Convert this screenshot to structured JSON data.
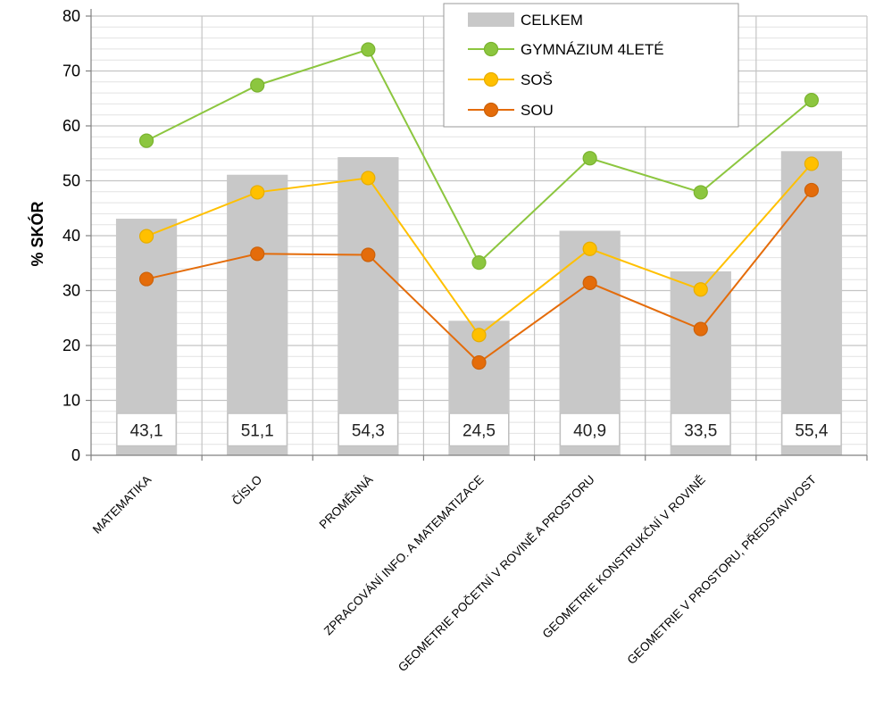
{
  "chart_data": {
    "type": "bar",
    "title": "",
    "xlabel": "",
    "ylabel": "% SKÓR",
    "ylim": [
      0,
      80
    ],
    "yticks": [
      0,
      10,
      20,
      30,
      40,
      50,
      60,
      70,
      80
    ],
    "grid": true,
    "legend_position": "top-right",
    "categories": [
      "MATEMATIKA",
      "ČÍSLO",
      "PROMĚNNÁ",
      "ZPRACOVÁNÍ INFO. A MATEMATIZACE",
      "GEOMETRIE POČETNÍ V ROVINĚ A PROSTORU",
      "GEOMETRIE KONSTRUKČNÍ V ROVINĚ",
      "GEOMETRIE V PROSTORU, PŘEDSTAVIVOST"
    ],
    "bar_series": {
      "name": "CELKEM",
      "values": [
        43.1,
        51.1,
        54.3,
        24.5,
        40.9,
        33.5,
        55.4
      ],
      "labels": [
        "43,1",
        "51,1",
        "54,3",
        "24,5",
        "40,9",
        "33,5",
        "55,4"
      ],
      "color": "#c8c8c8"
    },
    "line_series": [
      {
        "name": "GYMNÁZIUM 4LETÉ",
        "values": [
          57.3,
          67.4,
          73.9,
          35.1,
          54.1,
          47.9,
          64.7
        ],
        "color": "#8cc63f",
        "border": "#7ab32f"
      },
      {
        "name": "SOŠ",
        "values": [
          39.9,
          47.9,
          50.5,
          21.9,
          37.6,
          30.2,
          53.1
        ],
        "color": "#ffc000",
        "border": "#e6ad00"
      },
      {
        "name": "SOU",
        "values": [
          32.1,
          36.7,
          36.5,
          16.9,
          31.4,
          23.0,
          48.3
        ],
        "color": "#e46c0a",
        "border": "#cc6109"
      }
    ]
  }
}
